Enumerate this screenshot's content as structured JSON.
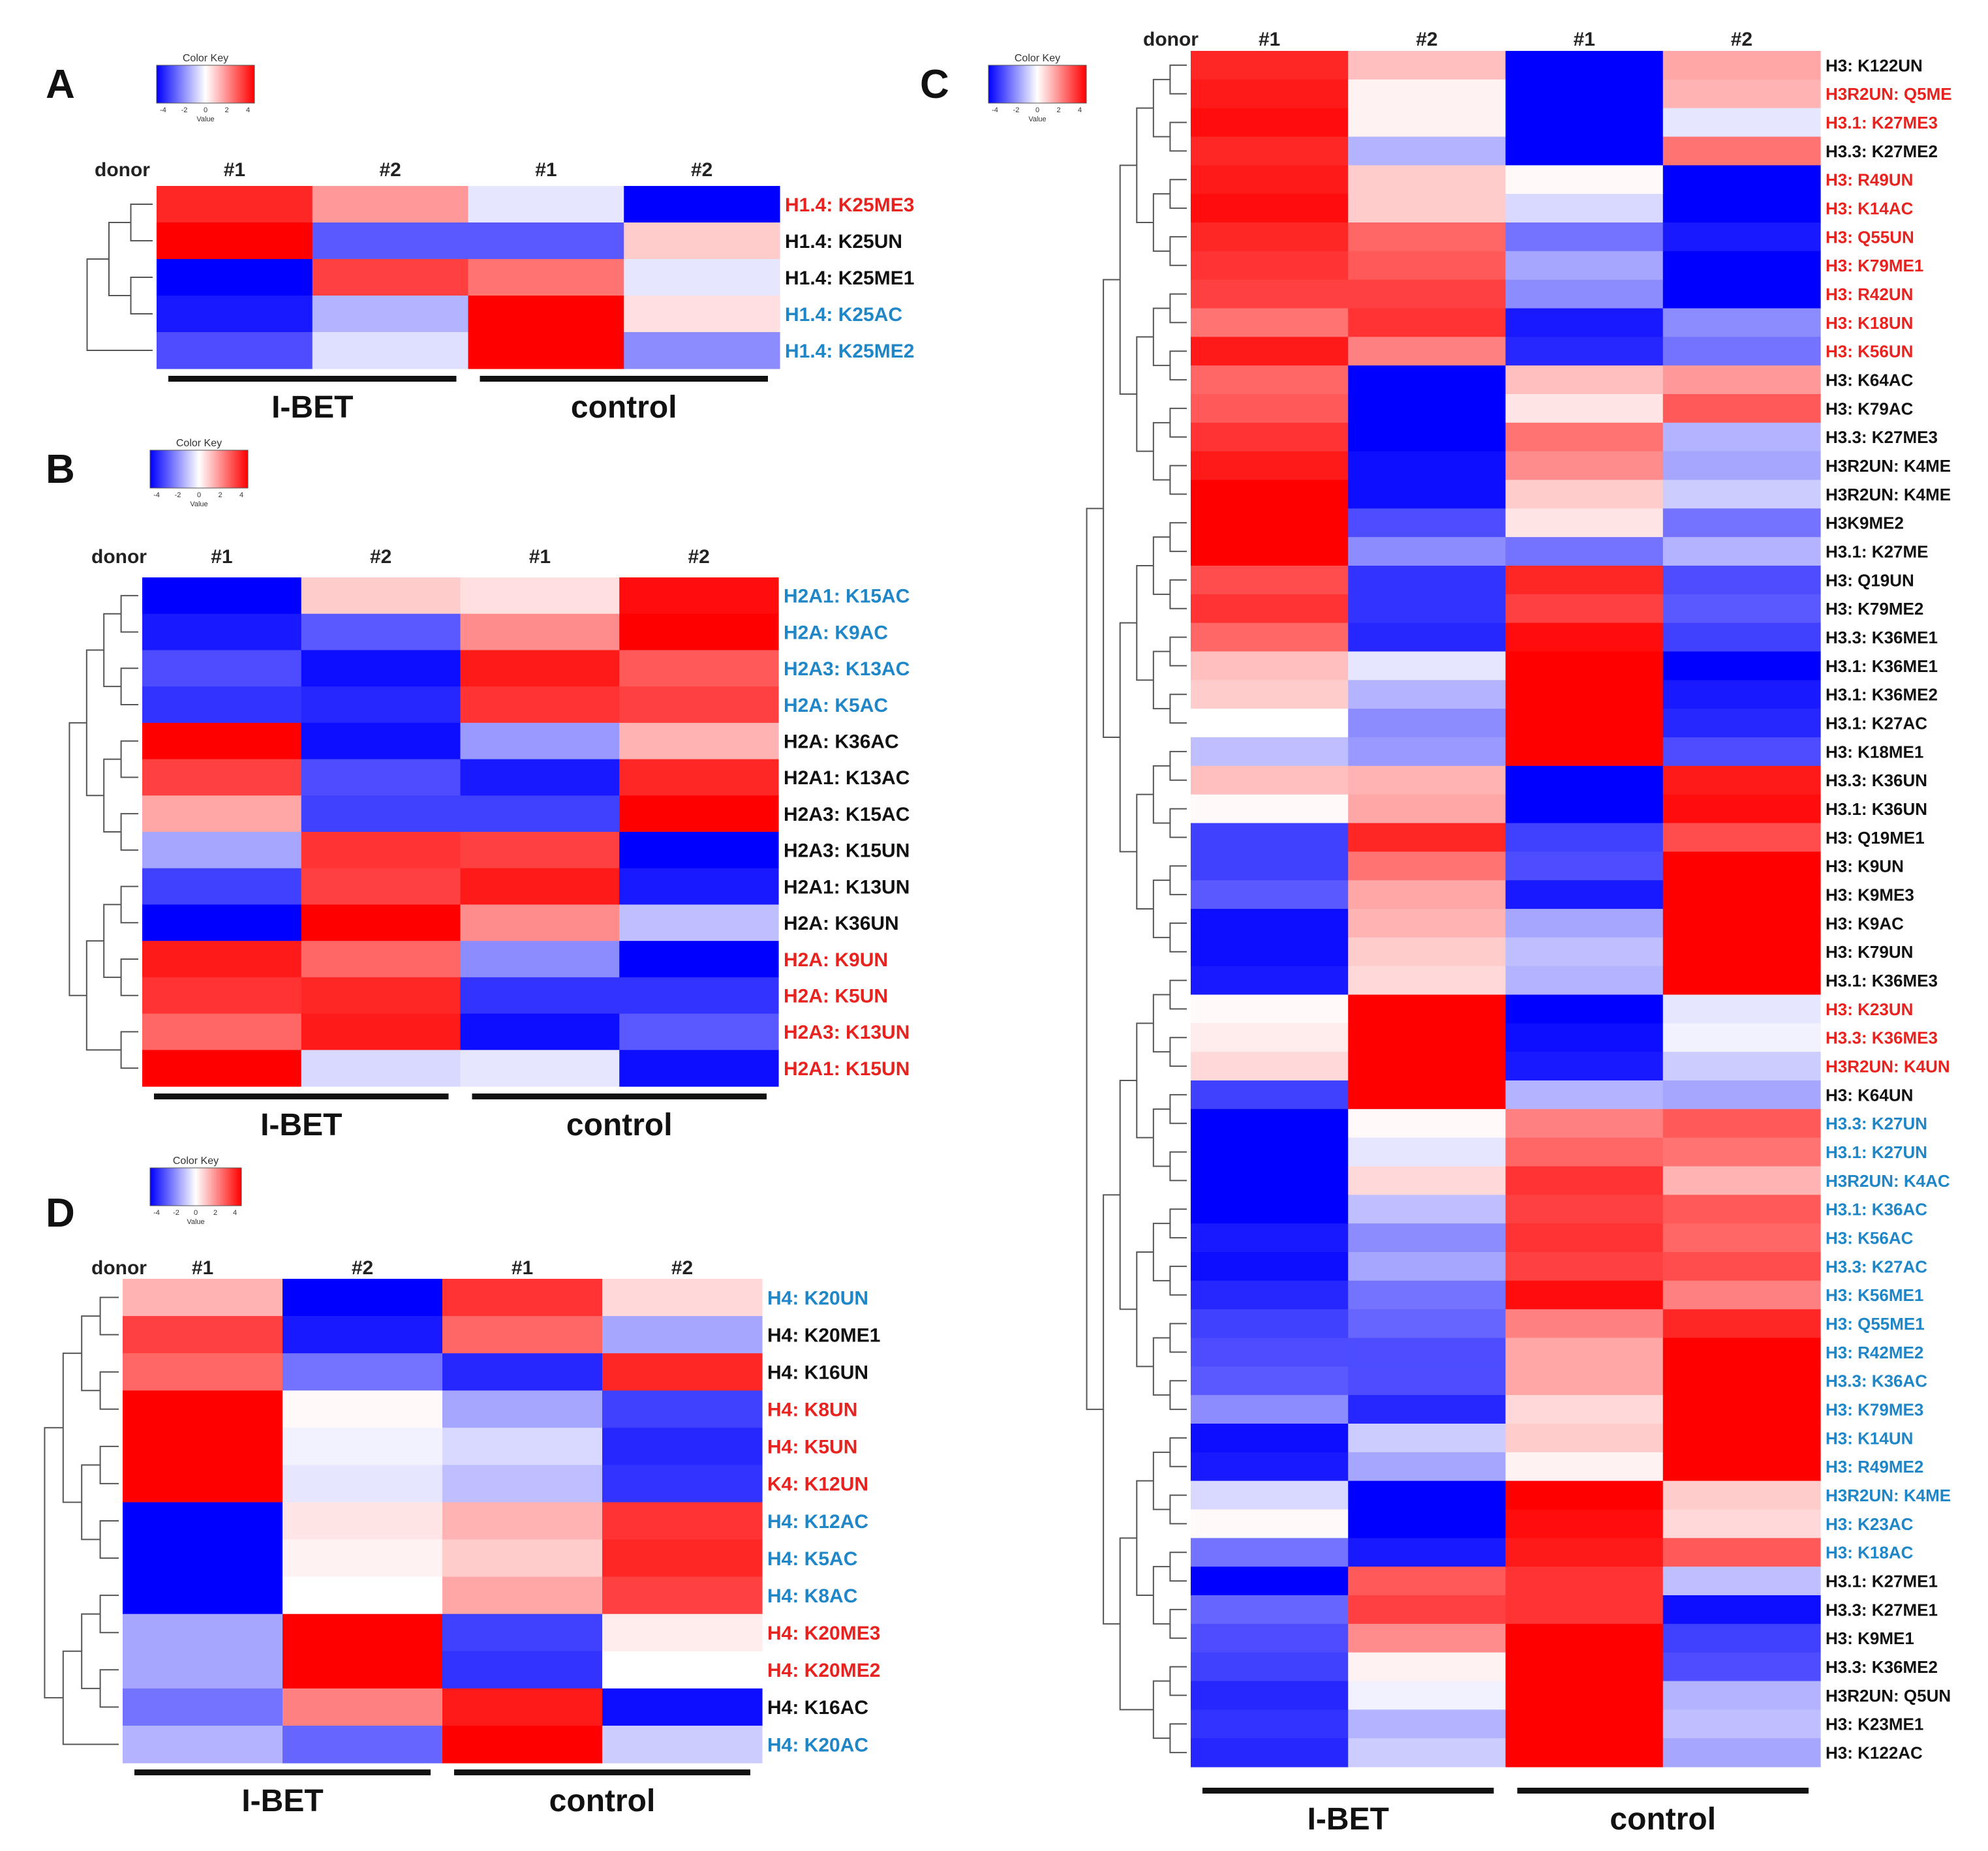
{
  "legend": {
    "title": "Color Key",
    "ticks": [
      "-4",
      "-2",
      "0",
      "2",
      "4"
    ],
    "xlabel": "Value"
  },
  "colors": {
    "low": "#0000ff",
    "mid": "#ffffff",
    "high": "#ff0000",
    "label_red": "#e8231f",
    "label_blue": "#1f86c8",
    "label_black": "#111111"
  },
  "chart_data": [
    {
      "panel": "A",
      "type": "heatmap",
      "donor_label": "donor",
      "columns": [
        "#1",
        "#2",
        "#1",
        "#2"
      ],
      "groups": [
        {
          "label": "I-BET",
          "cols": [
            0,
            1
          ]
        },
        {
          "label": "control",
          "cols": [
            2,
            3
          ]
        }
      ],
      "vmin": -4,
      "vmax": 4,
      "rows": [
        {
          "label": "H1.4: K25ME3",
          "color": "red",
          "values": [
            3.4,
            1.6,
            -0.4,
            -4.0
          ]
        },
        {
          "label": "H1.4: K25UN",
          "color": "black",
          "values": [
            4.0,
            -2.6,
            -2.6,
            0.8
          ]
        },
        {
          "label": "H1.4: K25ME1",
          "color": "black",
          "values": [
            -4.0,
            3.0,
            2.2,
            -0.4
          ]
        },
        {
          "label": "H1.4: K25AC",
          "color": "blue",
          "values": [
            -3.6,
            -1.2,
            4.0,
            0.5
          ]
        },
        {
          "label": "H1.4: K25ME2",
          "color": "blue",
          "values": [
            -2.8,
            -0.5,
            4.0,
            -1.8
          ]
        }
      ]
    },
    {
      "panel": "B",
      "type": "heatmap",
      "donor_label": "donor",
      "columns": [
        "#1",
        "#2",
        "#1",
        "#2"
      ],
      "groups": [
        {
          "label": "I-BET",
          "cols": [
            0,
            1
          ]
        },
        {
          "label": "control",
          "cols": [
            2,
            3
          ]
        }
      ],
      "vmin": -4,
      "vmax": 4,
      "rows": [
        {
          "label": "H2A1: K15AC",
          "color": "blue",
          "values": [
            -4.0,
            0.8,
            0.5,
            3.8
          ]
        },
        {
          "label": "H2A: K9AC",
          "color": "blue",
          "values": [
            -3.6,
            -2.6,
            1.8,
            4.0
          ]
        },
        {
          "label": "H2A3: K13AC",
          "color": "blue",
          "values": [
            -2.8,
            -3.8,
            3.6,
            2.6
          ]
        },
        {
          "label": "H2A: K5AC",
          "color": "blue",
          "values": [
            -3.2,
            -3.4,
            3.2,
            3.0
          ]
        },
        {
          "label": "H2A: K36AC",
          "color": "black",
          "values": [
            4.0,
            -3.8,
            -1.6,
            1.2
          ]
        },
        {
          "label": "H2A1: K13AC",
          "color": "black",
          "values": [
            3.0,
            -2.8,
            -3.6,
            3.4
          ]
        },
        {
          "label": "H2A3: K15AC",
          "color": "black",
          "values": [
            1.4,
            -3.0,
            -3.0,
            4.0
          ]
        },
        {
          "label": "H2A3: K15UN",
          "color": "black",
          "values": [
            -1.4,
            3.2,
            3.0,
            -4.0
          ]
        },
        {
          "label": "H2A1: K13UN",
          "color": "black",
          "values": [
            -3.0,
            3.0,
            3.6,
            -3.6
          ]
        },
        {
          "label": "H2A: K36UN",
          "color": "black",
          "values": [
            -4.0,
            4.0,
            1.8,
            -1.0
          ]
        },
        {
          "label": "H2A: K9UN",
          "color": "red",
          "values": [
            3.6,
            2.4,
            -1.8,
            -4.0
          ]
        },
        {
          "label": "H2A: K5UN",
          "color": "red",
          "values": [
            3.2,
            3.4,
            -3.2,
            -3.2
          ]
        },
        {
          "label": "H2A3: K13UN",
          "color": "red",
          "values": [
            2.4,
            3.6,
            -3.8,
            -2.6
          ]
        },
        {
          "label": "H2A1: K15UN",
          "color": "red",
          "values": [
            4.0,
            -0.6,
            -0.4,
            -3.8
          ]
        }
      ]
    },
    {
      "panel": "C",
      "type": "heatmap",
      "donor_label": "donor",
      "columns": [
        "#1",
        "#2",
        "#1",
        "#2"
      ],
      "groups": [
        {
          "label": "I-BET",
          "cols": [
            0,
            1
          ]
        },
        {
          "label": "control",
          "cols": [
            2,
            3
          ]
        }
      ],
      "vmin": -4,
      "vmax": 4,
      "rows": [
        {
          "label": "H3: K122UN",
          "color": "black",
          "values": [
            3.4,
            1.0,
            -4.0,
            1.4
          ]
        },
        {
          "label": "H3R2UN: Q5ME",
          "color": "red",
          "values": [
            3.6,
            0.2,
            -4.0,
            1.2
          ]
        },
        {
          "label": "H3.1: K27ME3",
          "color": "red",
          "values": [
            3.8,
            0.2,
            -4.0,
            -0.4
          ]
        },
        {
          "label": "H3.3: K27ME2",
          "color": "black",
          "values": [
            3.4,
            -1.2,
            -4.0,
            2.2
          ]
        },
        {
          "label": "H3: R49UN",
          "color": "red",
          "values": [
            3.6,
            0.8,
            0.1,
            -4.0
          ]
        },
        {
          "label": "H3: K14AC",
          "color": "red",
          "values": [
            3.8,
            0.8,
            -0.6,
            -4.0
          ]
        },
        {
          "label": "H3: Q55UN",
          "color": "red",
          "values": [
            3.4,
            2.4,
            -2.2,
            -3.6
          ]
        },
        {
          "label": "H3: K79ME1",
          "color": "red",
          "values": [
            3.2,
            2.6,
            -1.4,
            -4.0
          ]
        },
        {
          "label": "H3: R42UN",
          "color": "red",
          "values": [
            3.0,
            3.0,
            -1.8,
            -4.0
          ]
        },
        {
          "label": "H3: K18UN",
          "color": "red",
          "values": [
            2.2,
            3.2,
            -3.6,
            -1.8
          ]
        },
        {
          "label": "H3: K56UN",
          "color": "red",
          "values": [
            3.6,
            2.0,
            -3.4,
            -2.2
          ]
        },
        {
          "label": "H3: K64AC",
          "color": "black",
          "values": [
            2.4,
            -4.0,
            1.0,
            1.6
          ]
        },
        {
          "label": "H3: K79AC",
          "color": "black",
          "values": [
            2.6,
            -4.0,
            0.4,
            2.6
          ]
        },
        {
          "label": "H3.3: K27ME3",
          "color": "black",
          "values": [
            3.2,
            -4.0,
            2.2,
            -1.2
          ]
        },
        {
          "label": "H3R2UN: K4ME",
          "color": "black",
          "values": [
            3.6,
            -3.8,
            1.8,
            -1.4
          ]
        },
        {
          "label": "H3R2UN: K4ME",
          "color": "black",
          "values": [
            4.0,
            -3.8,
            0.8,
            -0.8
          ]
        },
        {
          "label": "H3K9ME2",
          "color": "black",
          "values": [
            4.0,
            -2.8,
            0.4,
            -2.2
          ]
        },
        {
          "label": "H3.1: K27ME",
          "color": "black",
          "values": [
            4.0,
            -1.8,
            -2.2,
            -1.2
          ]
        },
        {
          "label": "H3: Q19UN",
          "color": "black",
          "values": [
            2.8,
            -3.2,
            3.4,
            -2.8
          ]
        },
        {
          "label": "H3: K79ME2",
          "color": "black",
          "values": [
            3.2,
            -3.2,
            3.0,
            -2.6
          ]
        },
        {
          "label": "H3.3: K36ME1",
          "color": "black",
          "values": [
            2.4,
            -3.4,
            3.8,
            -3.0
          ]
        },
        {
          "label": "H3.1: K36ME1",
          "color": "black",
          "values": [
            1.0,
            -0.4,
            4.0,
            -4.0
          ]
        },
        {
          "label": "H3.1: K36ME2",
          "color": "black",
          "values": [
            0.8,
            -1.2,
            4.0,
            -3.6
          ]
        },
        {
          "label": "H3.1: K27AC",
          "color": "black",
          "values": [
            0.0,
            -1.8,
            4.0,
            -3.4
          ]
        },
        {
          "label": "H3: K18ME1",
          "color": "black",
          "values": [
            -1.0,
            -1.6,
            4.0,
            -2.8
          ]
        },
        {
          "label": "H3.3: K36UN",
          "color": "black",
          "values": [
            1.0,
            1.2,
            -4.0,
            3.6
          ]
        },
        {
          "label": "H3.1: K36UN",
          "color": "black",
          "values": [
            0.1,
            1.4,
            -4.0,
            3.8
          ]
        },
        {
          "label": "H3: Q19ME1",
          "color": "black",
          "values": [
            -3.0,
            3.4,
            -3.0,
            2.8
          ]
        },
        {
          "label": "H3: K9UN",
          "color": "black",
          "values": [
            -3.0,
            2.2,
            -2.8,
            4.0
          ]
        },
        {
          "label": "H3: K9ME3",
          "color": "black",
          "values": [
            -2.6,
            1.4,
            -3.6,
            4.0
          ]
        },
        {
          "label": "H3: K9AC",
          "color": "black",
          "values": [
            -3.8,
            1.2,
            -1.4,
            4.0
          ]
        },
        {
          "label": "H3: K79UN",
          "color": "black",
          "values": [
            -3.8,
            0.8,
            -1.0,
            4.0
          ]
        },
        {
          "label": "H3.1: K36ME3",
          "color": "black",
          "values": [
            -3.6,
            0.6,
            -1.2,
            4.0
          ]
        },
        {
          "label": "H3: K23UN",
          "color": "red",
          "values": [
            0.1,
            4.0,
            -4.0,
            -0.4
          ]
        },
        {
          "label": "H3.3: K36ME3",
          "color": "red",
          "values": [
            0.3,
            4.0,
            -3.8,
            -0.2
          ]
        },
        {
          "label": "H3R2UN: K4UN",
          "color": "red",
          "values": [
            0.6,
            4.0,
            -3.6,
            -0.8
          ]
        },
        {
          "label": "H3: K64UN",
          "color": "black",
          "values": [
            -3.0,
            4.0,
            -1.2,
            -1.4
          ]
        },
        {
          "label": "H3.3: K27UN",
          "color": "blue",
          "values": [
            -4.0,
            0.1,
            2.0,
            2.6
          ]
        },
        {
          "label": "H3.1: K27UN",
          "color": "blue",
          "values": [
            -4.0,
            -0.4,
            2.4,
            2.2
          ]
        },
        {
          "label": "H3R2UN: K4AC",
          "color": "blue",
          "values": [
            -4.0,
            0.6,
            3.2,
            1.2
          ]
        },
        {
          "label": "H3.1: K36AC",
          "color": "blue",
          "values": [
            -4.0,
            -1.0,
            3.0,
            2.6
          ]
        },
        {
          "label": "H3: K56AC",
          "color": "blue",
          "values": [
            -3.6,
            -1.8,
            3.2,
            2.4
          ]
        },
        {
          "label": "H3.3: K27AC",
          "color": "blue",
          "values": [
            -3.8,
            -1.4,
            3.0,
            2.8
          ]
        },
        {
          "label": "H3: K56ME1",
          "color": "blue",
          "values": [
            -3.4,
            -2.2,
            3.8,
            2.0
          ]
        },
        {
          "label": "H3: Q55ME1",
          "color": "blue",
          "values": [
            -3.0,
            -2.4,
            2.0,
            3.4
          ]
        },
        {
          "label": "H3: R42ME2",
          "color": "blue",
          "values": [
            -2.8,
            -2.8,
            1.4,
            4.0
          ]
        },
        {
          "label": "H3.3: K36AC",
          "color": "blue",
          "values": [
            -2.6,
            -2.8,
            1.4,
            4.0
          ]
        },
        {
          "label": "H3: K79ME3",
          "color": "blue",
          "values": [
            -1.8,
            -3.4,
            0.6,
            4.0
          ]
        },
        {
          "label": "H3: K14UN",
          "color": "blue",
          "values": [
            -3.8,
            -0.8,
            0.8,
            4.0
          ]
        },
        {
          "label": "H3: R49ME2",
          "color": "blue",
          "values": [
            -3.6,
            -1.4,
            0.2,
            4.0
          ]
        },
        {
          "label": "H3R2UN: K4ME",
          "color": "blue",
          "values": [
            -0.6,
            -4.0,
            4.0,
            0.8
          ]
        },
        {
          "label": "H3: K23AC",
          "color": "blue",
          "values": [
            0.1,
            -4.0,
            3.8,
            0.6
          ]
        },
        {
          "label": "H3: K18AC",
          "color": "blue",
          "values": [
            -2.2,
            -3.6,
            3.6,
            2.6
          ]
        },
        {
          "label": "H3.1: K27ME1",
          "color": "black",
          "values": [
            -4.0,
            2.6,
            3.2,
            -1.0
          ]
        },
        {
          "label": "H3.3: K27ME1",
          "color": "black",
          "values": [
            -2.4,
            3.0,
            3.2,
            -3.8
          ]
        },
        {
          "label": "H3: K9ME1",
          "color": "black",
          "values": [
            -2.8,
            1.8,
            4.0,
            -3.0
          ]
        },
        {
          "label": "H3.3: K36ME2",
          "color": "black",
          "values": [
            -3.0,
            0.2,
            4.0,
            -2.8
          ]
        },
        {
          "label": "H3R2UN: Q5UN",
          "color": "black",
          "values": [
            -3.4,
            -0.2,
            4.0,
            -1.2
          ]
        },
        {
          "label": "H3: K23ME1",
          "color": "black",
          "values": [
            -3.2,
            -1.2,
            4.0,
            -1.0
          ]
        },
        {
          "label": "H3: K122AC",
          "color": "black",
          "values": [
            -3.4,
            -0.8,
            4.0,
            -1.4
          ]
        }
      ]
    },
    {
      "panel": "D",
      "type": "heatmap",
      "donor_label": "donor",
      "columns": [
        "#1",
        "#2",
        "#1",
        "#2"
      ],
      "groups": [
        {
          "label": "I-BET",
          "cols": [
            0,
            1
          ]
        },
        {
          "label": "control",
          "cols": [
            2,
            3
          ]
        }
      ],
      "vmin": -4,
      "vmax": 4,
      "rows": [
        {
          "label": "H4: K20UN",
          "color": "blue",
          "values": [
            1.2,
            -4.0,
            3.2,
            0.6
          ]
        },
        {
          "label": "H4: K20ME1",
          "color": "black",
          "values": [
            3.0,
            -3.6,
            2.4,
            -1.4
          ]
        },
        {
          "label": "H4: K16UN",
          "color": "black",
          "values": [
            2.4,
            -2.2,
            -3.4,
            3.4
          ]
        },
        {
          "label": "H4: K8UN",
          "color": "red",
          "values": [
            4.0,
            0.1,
            -1.4,
            -3.0
          ]
        },
        {
          "label": "H4: K5UN",
          "color": "red",
          "values": [
            4.0,
            -0.2,
            -0.6,
            -3.4
          ]
        },
        {
          "label": "K4: K12UN",
          "color": "red",
          "values": [
            4.0,
            -0.4,
            -1.0,
            -3.2
          ]
        },
        {
          "label": "H4: K12AC",
          "color": "blue",
          "values": [
            -4.0,
            0.4,
            1.2,
            3.2
          ]
        },
        {
          "label": "H4: K5AC",
          "color": "blue",
          "values": [
            -4.0,
            0.2,
            0.8,
            3.4
          ]
        },
        {
          "label": "H4: K8AC",
          "color": "blue",
          "values": [
            -4.0,
            0.0,
            1.4,
            3.0
          ]
        },
        {
          "label": "H4: K20ME3",
          "color": "red",
          "values": [
            -1.4,
            4.0,
            -3.0,
            0.3
          ]
        },
        {
          "label": "H4: K20ME2",
          "color": "red",
          "values": [
            -1.4,
            4.0,
            -3.2,
            0.0
          ]
        },
        {
          "label": "H4: K16AC",
          "color": "black",
          "values": [
            -2.2,
            2.0,
            3.6,
            -3.8
          ]
        },
        {
          "label": "H4: K20AC",
          "color": "blue",
          "values": [
            -1.2,
            -2.4,
            4.0,
            -0.8
          ]
        }
      ]
    }
  ]
}
